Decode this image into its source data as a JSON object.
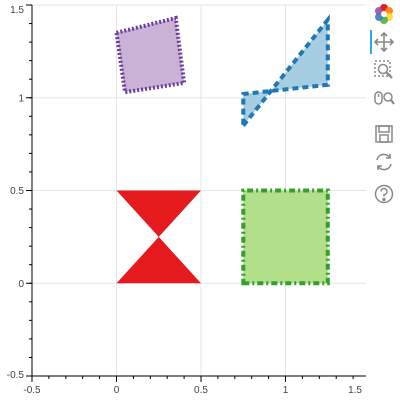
{
  "chart_data": {
    "type": "polygons",
    "title": "",
    "xlabel": "",
    "ylabel": "",
    "xlim": [
      -0.5,
      1.5
    ],
    "ylim": [
      -0.5,
      1.5
    ],
    "x_ticks": [
      {
        "value": -0.5,
        "label": "-0.5"
      },
      {
        "value": 0,
        "label": "0"
      },
      {
        "value": 0.5,
        "label": "0.5"
      },
      {
        "value": 1,
        "label": "1"
      },
      {
        "value": 1.5,
        "label": "1.5"
      }
    ],
    "y_ticks": [
      {
        "value": -0.5,
        "label": "-0.5"
      },
      {
        "value": 0,
        "label": "0"
      },
      {
        "value": 0.5,
        "label": "0.5"
      },
      {
        "value": 1,
        "label": "1"
      },
      {
        "value": 1.5,
        "label": "1.5"
      }
    ],
    "grid": true,
    "polygons": [
      {
        "id": "bowtie",
        "xs": [
          0,
          0.5,
          0,
          0.5
        ],
        "ys": [
          0,
          0.5,
          0.5,
          0
        ],
        "fill": "#e41a1c",
        "fill_alpha": 1.0,
        "line": "none",
        "line_dash": "solid"
      },
      {
        "id": "square",
        "xs": [
          0.75,
          1.25,
          1.25,
          0.75
        ],
        "ys": [
          0,
          0,
          0.5,
          0.5
        ],
        "fill": "#b2df8a",
        "fill_alpha": 1.0,
        "line": "#33a02c",
        "line_dash": "dashdot"
      },
      {
        "id": "quad",
        "xs": [
          0,
          0.35,
          0.4,
          0.05
        ],
        "ys": [
          1.35,
          1.43,
          1.08,
          1.03
        ],
        "fill": "#cab2d6",
        "fill_alpha": 1.0,
        "line": "#6a3d9a",
        "line_dash": "dotted"
      },
      {
        "id": "butterfly",
        "xs": [
          0.75,
          1.25,
          1.25,
          0.75
        ],
        "ys": [
          0.85,
          1.42,
          1.07,
          1.02
        ],
        "fill": "#a6cee3",
        "fill_alpha": 1.0,
        "line": "#1f78b4",
        "line_dash": "dashed"
      }
    ]
  },
  "toolbar": {
    "items": [
      {
        "name": "bokeh-logo-icon",
        "interactable": false
      },
      {
        "name": "pan-icon",
        "interactable": true
      },
      {
        "name": "box-zoom-icon",
        "interactable": true
      },
      {
        "name": "wheel-zoom-icon",
        "interactable": true
      },
      {
        "name": "save-icon",
        "interactable": true
      },
      {
        "name": "reset-icon",
        "interactable": true
      },
      {
        "name": "help-icon",
        "interactable": true
      }
    ],
    "active_color": "#26aae1"
  }
}
